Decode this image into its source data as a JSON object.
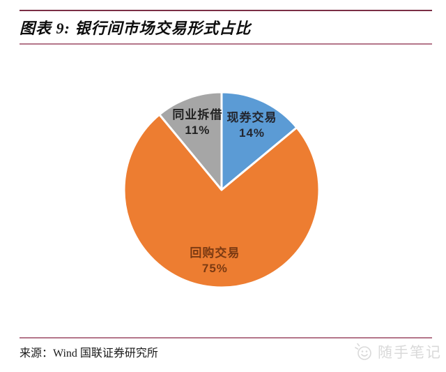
{
  "page": {
    "background": "#ffffff"
  },
  "header": {
    "title": "图表 9: 银行间市场交易形式占比",
    "rule_top_color": "#7a2e45",
    "rule_bottom_color": "#b4768a"
  },
  "chart_data": {
    "type": "pie",
    "title": "银行间市场交易形式占比",
    "categories": [
      "现券交易",
      "回购交易",
      "同业拆借"
    ],
    "values": [
      14,
      75,
      11
    ],
    "unit": "%",
    "start_angle_deg": 0,
    "direction": "clockwise",
    "legend": "none",
    "labels_inside": true,
    "label_radius_factor": 0.73,
    "separator_color": "#ffffff",
    "slices": [
      {
        "label": "现券交易",
        "value": 14,
        "display": "14%",
        "color": "#5b9bd5",
        "label_color": "#23262f"
      },
      {
        "label": "回购交易",
        "value": 75,
        "display": "75%",
        "color": "#ed7d31",
        "label_color": "#7b3a12"
      },
      {
        "label": "同业拆借",
        "value": 11,
        "display": "11%",
        "color": "#a6a6a6",
        "label_color": "#212121"
      }
    ]
  },
  "footer": {
    "source": "来源：Wind 国联证券研究所",
    "rule_color": "#b4768a",
    "watermark": {
      "icon": "smiley-face-icon",
      "text": "随手笔记",
      "color": "#d9d9d9"
    }
  }
}
